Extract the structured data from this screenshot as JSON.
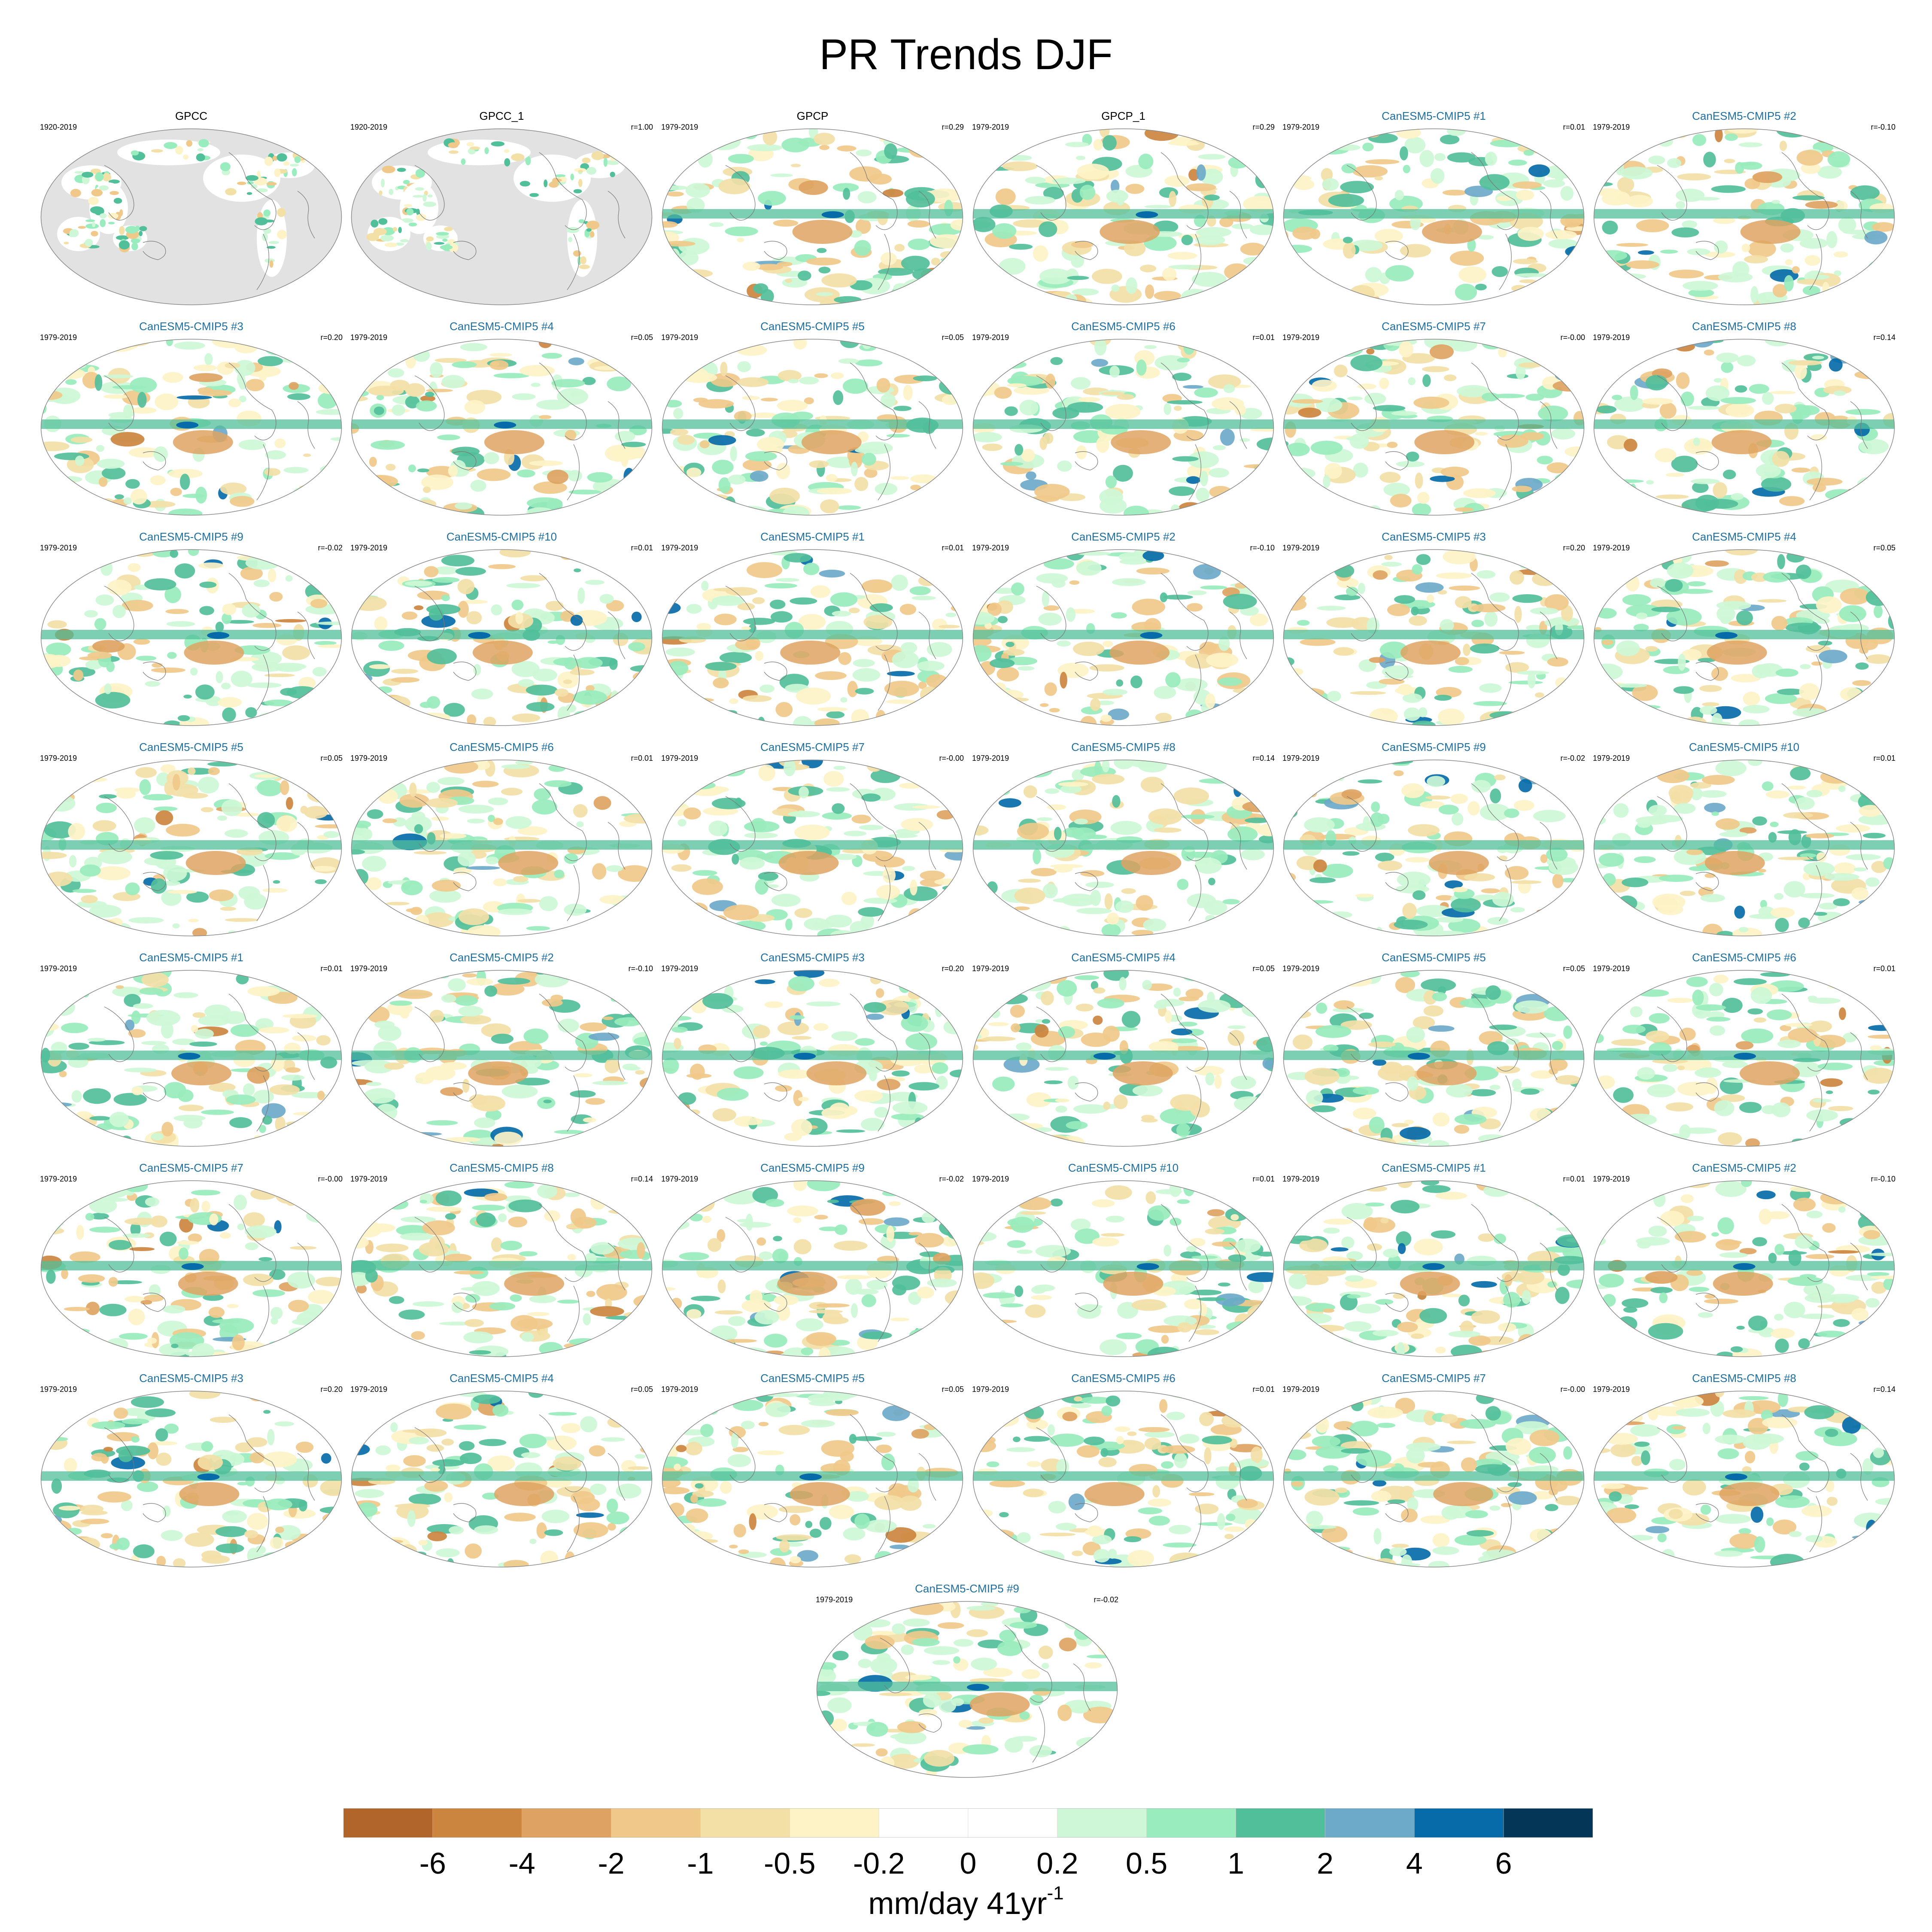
{
  "title": "PR Trends DJF",
  "chart_data": {
    "type": "heatmap",
    "title": "PR Trends DJF",
    "panels": [
      {
        "title": "GPCC",
        "years": "1920-2019",
        "corr": "",
        "kind": "obs"
      },
      {
        "title": "GPCC_1",
        "years": "1920-2019",
        "corr": "r=1.00",
        "kind": "obs"
      },
      {
        "title": "GPCP",
        "years": "1979-2019",
        "corr": "r=0.29",
        "kind": "obs"
      },
      {
        "title": "GPCP_1",
        "years": "1979-2019",
        "corr": "r=0.29",
        "kind": "obs"
      },
      {
        "title": "CanESM5-CMIP5 #1",
        "years": "1979-2019",
        "corr": "r=0.01",
        "kind": "model"
      },
      {
        "title": "CanESM5-CMIP5 #2",
        "years": "1979-2019",
        "corr": "r=-0.10",
        "kind": "model"
      },
      {
        "title": "CanESM5-CMIP5 #3",
        "years": "1979-2019",
        "corr": "r=0.20",
        "kind": "model"
      },
      {
        "title": "CanESM5-CMIP5 #4",
        "years": "1979-2019",
        "corr": "r=0.05",
        "kind": "model"
      },
      {
        "title": "CanESM5-CMIP5 #5",
        "years": "1979-2019",
        "corr": "r=0.05",
        "kind": "model"
      },
      {
        "title": "CanESM5-CMIP5 #6",
        "years": "1979-2019",
        "corr": "r=0.01",
        "kind": "model"
      },
      {
        "title": "CanESM5-CMIP5 #7",
        "years": "1979-2019",
        "corr": "r=-0.00",
        "kind": "model"
      },
      {
        "title": "CanESM5-CMIP5 #8",
        "years": "1979-2019",
        "corr": "r=0.14",
        "kind": "model"
      },
      {
        "title": "CanESM5-CMIP5 #9",
        "years": "1979-2019",
        "corr": "r=-0.02",
        "kind": "model"
      },
      {
        "title": "CanESM5-CMIP5 #10",
        "years": "1979-2019",
        "corr": "r=0.01",
        "kind": "model"
      },
      {
        "title": "CanESM5-CMIP5 #1",
        "years": "1979-2019",
        "corr": "r=0.01",
        "kind": "model"
      },
      {
        "title": "CanESM5-CMIP5 #2",
        "years": "1979-2019",
        "corr": "r=-0.10",
        "kind": "model"
      },
      {
        "title": "CanESM5-CMIP5 #3",
        "years": "1979-2019",
        "corr": "r=0.20",
        "kind": "model"
      },
      {
        "title": "CanESM5-CMIP5 #4",
        "years": "1979-2019",
        "corr": "r=0.05",
        "kind": "model"
      },
      {
        "title": "CanESM5-CMIP5 #5",
        "years": "1979-2019",
        "corr": "r=0.05",
        "kind": "model"
      },
      {
        "title": "CanESM5-CMIP5 #6",
        "years": "1979-2019",
        "corr": "r=0.01",
        "kind": "model"
      },
      {
        "title": "CanESM5-CMIP5 #7",
        "years": "1979-2019",
        "corr": "r=-0.00",
        "kind": "model"
      },
      {
        "title": "CanESM5-CMIP5 #8",
        "years": "1979-2019",
        "corr": "r=0.14",
        "kind": "model"
      },
      {
        "title": "CanESM5-CMIP5 #9",
        "years": "1979-2019",
        "corr": "r=-0.02",
        "kind": "model"
      },
      {
        "title": "CanESM5-CMIP5 #10",
        "years": "1979-2019",
        "corr": "r=0.01",
        "kind": "model"
      },
      {
        "title": "CanESM5-CMIP5 #1",
        "years": "1979-2019",
        "corr": "r=0.01",
        "kind": "model"
      },
      {
        "title": "CanESM5-CMIP5 #2",
        "years": "1979-2019",
        "corr": "r=-0.10",
        "kind": "model"
      },
      {
        "title": "CanESM5-CMIP5 #3",
        "years": "1979-2019",
        "corr": "r=0.20",
        "kind": "model"
      },
      {
        "title": "CanESM5-CMIP5 #4",
        "years": "1979-2019",
        "corr": "r=0.05",
        "kind": "model"
      },
      {
        "title": "CanESM5-CMIP5 #5",
        "years": "1979-2019",
        "corr": "r=0.05",
        "kind": "model"
      },
      {
        "title": "CanESM5-CMIP5 #6",
        "years": "1979-2019",
        "corr": "r=0.01",
        "kind": "model"
      },
      {
        "title": "CanESM5-CMIP5 #7",
        "years": "1979-2019",
        "corr": "r=-0.00",
        "kind": "model"
      },
      {
        "title": "CanESM5-CMIP5 #8",
        "years": "1979-2019",
        "corr": "r=0.14",
        "kind": "model"
      },
      {
        "title": "CanESM5-CMIP5 #9",
        "years": "1979-2019",
        "corr": "r=-0.02",
        "kind": "model"
      },
      {
        "title": "CanESM5-CMIP5 #10",
        "years": "1979-2019",
        "corr": "r=0.01",
        "kind": "model"
      },
      {
        "title": "CanESM5-CMIP5 #1",
        "years": "1979-2019",
        "corr": "r=0.01",
        "kind": "model"
      },
      {
        "title": "CanESM5-CMIP5 #2",
        "years": "1979-2019",
        "corr": "r=-0.10",
        "kind": "model"
      },
      {
        "title": "CanESM5-CMIP5 #3",
        "years": "1979-2019",
        "corr": "r=0.20",
        "kind": "model"
      },
      {
        "title": "CanESM5-CMIP5 #4",
        "years": "1979-2019",
        "corr": "r=0.05",
        "kind": "model"
      },
      {
        "title": "CanESM5-CMIP5 #5",
        "years": "1979-2019",
        "corr": "r=0.05",
        "kind": "model"
      },
      {
        "title": "CanESM5-CMIP5 #6",
        "years": "1979-2019",
        "corr": "r=0.01",
        "kind": "model"
      },
      {
        "title": "CanESM5-CMIP5 #7",
        "years": "1979-2019",
        "corr": "r=-0.00",
        "kind": "model"
      },
      {
        "title": "CanESM5-CMIP5 #8",
        "years": "1979-2019",
        "corr": "r=0.14",
        "kind": "model"
      },
      {
        "title": "CanESM5-CMIP5 #9",
        "years": "1979-2019",
        "corr": "r=-0.02",
        "kind": "model"
      }
    ],
    "colorbar": {
      "ticks": [
        "-6",
        "-4",
        "-2",
        "-1",
        "-0.5",
        "-0.2",
        "0",
        "0.2",
        "0.5",
        "1",
        "2",
        "4",
        "6"
      ],
      "colors": [
        "#b2652a",
        "#cc853f",
        "#dea362",
        "#f0c98a",
        "#f3e0a7",
        "#fdf3c7",
        "#ffffff",
        "#ffffff",
        "#cdf7d6",
        "#99ecbd",
        "#52bf9b",
        "#6da9c9",
        "#076ba9",
        "#043757"
      ],
      "unit": "mm/day 41yr",
      "unit_exponent": "-1"
    }
  }
}
